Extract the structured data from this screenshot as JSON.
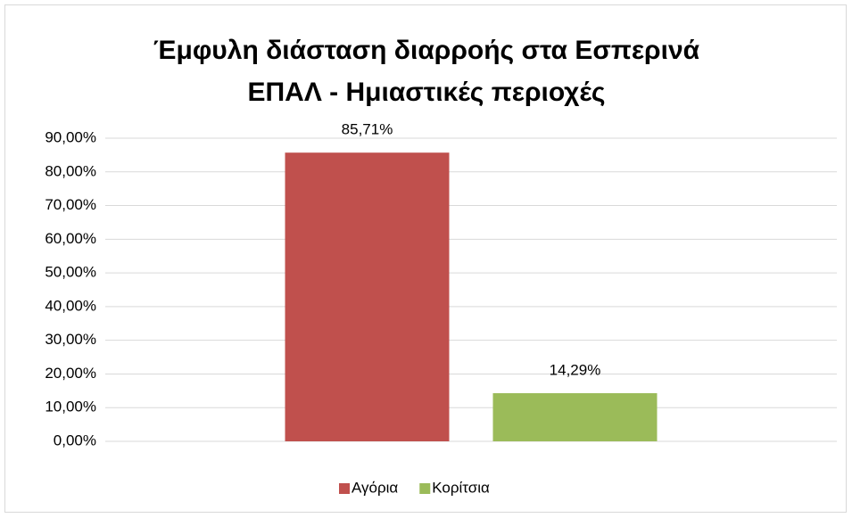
{
  "chart_data": {
    "type": "bar",
    "title": [
      "Έμφυλη διάσταση διαρροής στα Εσπερινά",
      "ΕΠΑΛ - Ημιαστικές περιοχές"
    ],
    "categories": [
      null
    ],
    "series": [
      {
        "name": "Αγόρια",
        "color": "#c0504d",
        "values": [
          85.71
        ],
        "value_labels": [
          "85,71%"
        ]
      },
      {
        "name": "Κορίτσια",
        "color": "#9bbb59",
        "values": [
          14.29
        ],
        "value_labels": [
          "14,29%"
        ]
      }
    ],
    "ylim": [
      0,
      90
    ],
    "yticks": [
      {
        "value": 0,
        "label": "0,00%"
      },
      {
        "value": 10,
        "label": "10,00%"
      },
      {
        "value": 20,
        "label": "20,00%"
      },
      {
        "value": 30,
        "label": "30,00%"
      },
      {
        "value": 40,
        "label": "40,00%"
      },
      {
        "value": 50,
        "label": "50,00%"
      },
      {
        "value": 60,
        "label": "60,00%"
      },
      {
        "value": 70,
        "label": "70,00%"
      },
      {
        "value": 80,
        "label": "80,00%"
      },
      {
        "value": 90,
        "label": "90,00%"
      }
    ],
    "grid": true,
    "legend": "bottom"
  }
}
